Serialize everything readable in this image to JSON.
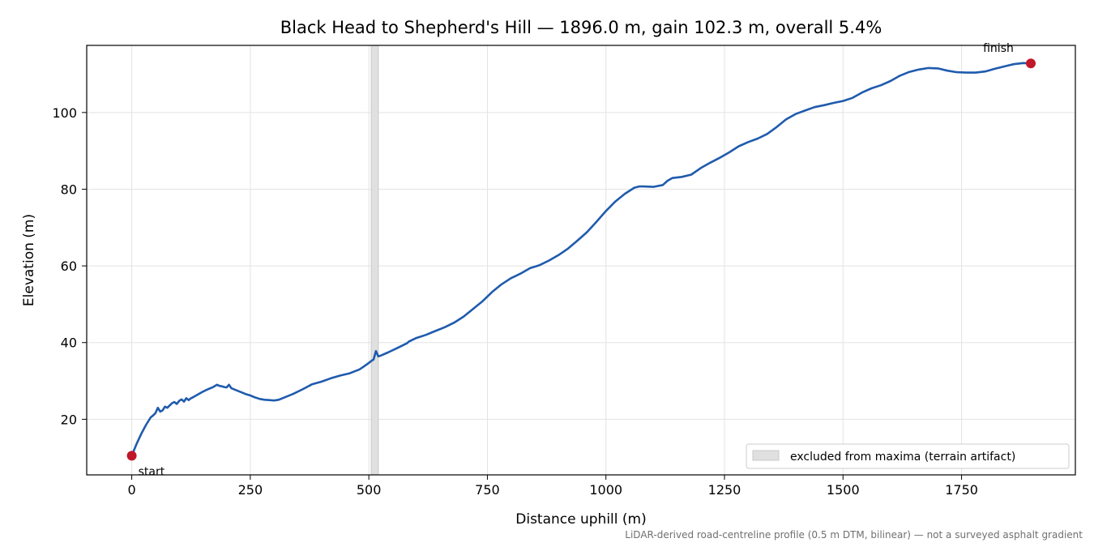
{
  "chart_data": {
    "type": "line",
    "title": "Black Head to Shepherd's Hill — 1896.0 m, gain 102.3 m, overall 5.4%",
    "xlabel": "Distance uphill (m)",
    "ylabel": "Elevation (m)",
    "xlim": [
      -95,
      1990
    ],
    "ylim": [
      5.5,
      117.5
    ],
    "xticks": [
      0,
      250,
      500,
      750,
      1000,
      1250,
      1500,
      1750
    ],
    "yticks": [
      20,
      40,
      60,
      80,
      100
    ],
    "grid": true,
    "line_color": "#1f5bad",
    "series": [
      {
        "x": [
          0,
          10,
          20,
          30,
          40,
          45,
          50,
          55,
          60,
          65,
          70,
          75,
          80,
          85,
          90,
          95,
          100,
          105,
          110,
          115,
          120,
          125,
          130,
          140,
          150,
          160,
          170,
          180,
          185,
          190,
          195,
          200,
          205,
          210,
          220,
          230,
          240,
          250,
          260,
          270,
          280,
          290,
          300,
          310,
          320,
          340,
          360,
          380,
          400,
          420,
          440,
          460,
          480,
          490,
          500,
          505,
          510,
          515,
          520,
          525,
          540,
          560,
          580,
          585,
          590,
          600,
          620,
          640,
          660,
          680,
          700,
          720,
          740,
          760,
          780,
          800,
          820,
          840,
          860,
          880,
          900,
          920,
          940,
          960,
          980,
          1000,
          1020,
          1040,
          1060,
          1070,
          1080,
          1100,
          1120,
          1130,
          1140,
          1160,
          1180,
          1200,
          1220,
          1240,
          1260,
          1280,
          1300,
          1320,
          1340,
          1360,
          1380,
          1400,
          1420,
          1440,
          1460,
          1480,
          1500,
          1520,
          1540,
          1560,
          1580,
          1600,
          1620,
          1640,
          1660,
          1680,
          1700,
          1720,
          1740,
          1760,
          1780,
          1800,
          1820,
          1840,
          1860,
          1880,
          1896
        ],
        "y": [
          10.5,
          13.5,
          16.2,
          18.5,
          20.5,
          21,
          21.6,
          23,
          22,
          22.3,
          23.3,
          23,
          23.6,
          24.2,
          24.5,
          24,
          24.8,
          25.2,
          24.6,
          25.5,
          25,
          25.5,
          25.8,
          26.5,
          27.2,
          27.8,
          28.3,
          29,
          28.7,
          28.6,
          28.4,
          28.3,
          29,
          28.1,
          27.6,
          27.1,
          26.6,
          26.2,
          25.7,
          25.3,
          25.1,
          25,
          24.9,
          25.1,
          25.6,
          26.6,
          27.8,
          29.1,
          29.8,
          30.7,
          31.4,
          32,
          33,
          33.8,
          34.7,
          35.2,
          35.6,
          37.8,
          36.4,
          36.6,
          37.4,
          38.6,
          39.8,
          40.3,
          40.6,
          41.2,
          42,
          43,
          44,
          45.2,
          46.8,
          48.8,
          50.8,
          53.2,
          55.2,
          56.8,
          58,
          59.4,
          60.2,
          61.4,
          62.8,
          64.5,
          66.6,
          68.8,
          71.5,
          74.3,
          76.8,
          78.8,
          80.4,
          80.7,
          80.7,
          80.6,
          81.1,
          82.2,
          82.9,
          83.2,
          83.8,
          85.5,
          86.9,
          88.2,
          89.6,
          91.2,
          92.3,
          93.2,
          94.4,
          96.2,
          98.2,
          99.6,
          100.5,
          101.4,
          101.9,
          102.5,
          103,
          103.8,
          105.2,
          106.3,
          107.1,
          108.2,
          109.6,
          110.6,
          111.2,
          111.6,
          111.5,
          110.9,
          110.5,
          110.4,
          110.4,
          110.7,
          111.4,
          112,
          112.6,
          112.9,
          112.8
        ]
      }
    ],
    "markers": [
      {
        "label": "start",
        "x": 0,
        "y": 10.5,
        "color": "#c0172a"
      },
      {
        "label": "finish",
        "x": 1896,
        "y": 112.8,
        "color": "#c0172a"
      }
    ],
    "excluded_band": {
      "x0": 505,
      "x1": 520,
      "color": "#e0e0e0"
    },
    "legend": {
      "placement": "lower-right",
      "label": "excluded from maxima (terrain artifact)"
    },
    "footnote": "LiDAR-derived road-centreline profile (0.5 m DTM, bilinear) — not a surveyed asphalt gradient"
  }
}
